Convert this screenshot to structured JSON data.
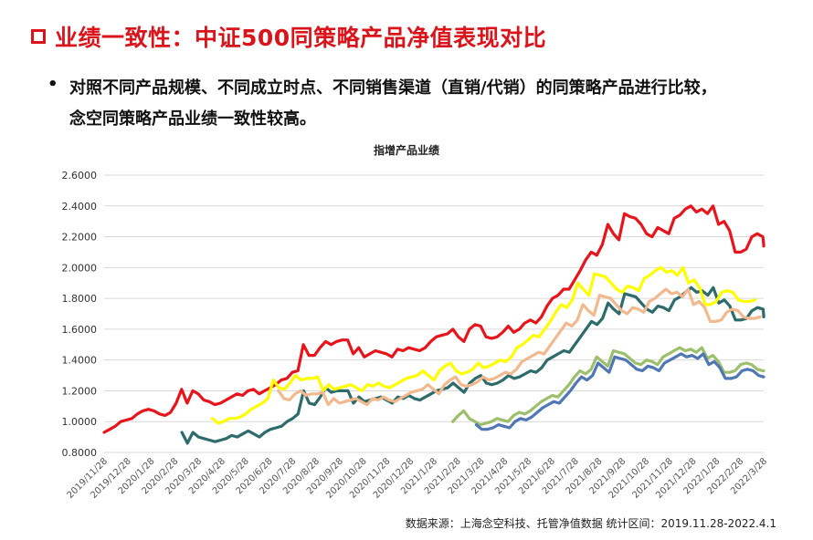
{
  "slide": {
    "title": "业绩一致性：中证500同策略产品净值表现对比",
    "bullet_symbol": "•",
    "bullet_line1": "对照不同产品规模、不同成立时点、不同销售渠道（直销/代销）的同策略产品进行比较，",
    "bullet_line2": "念空同策略产品业绩一致性较高。",
    "source": "数据来源：上海念空科技、托管净值数据     统计区间：2019.11.28-2022.4.1"
  },
  "colors": {
    "title": "#d9141b",
    "red": "#e8141b",
    "yellow": "#ffff00",
    "teal": "#2e6b6b",
    "peach": "#f2b98e",
    "green": "#9cbf6b",
    "blue": "#4f77b5"
  },
  "chart_data": {
    "type": "line",
    "title": "指增产品业绩",
    "xlabel": "",
    "ylabel": "",
    "ylim": [
      0.8,
      2.6
    ],
    "yticks": [
      "0.8000",
      "1.0000",
      "1.2000",
      "1.4000",
      "1.6000",
      "1.8000",
      "2.0000",
      "2.2000",
      "2.4000",
      "2.6000"
    ],
    "x_tick_labels": [
      "2019/11/28",
      "2019/12/28",
      "2020/1/28",
      "2020/2/28",
      "2020/3/28",
      "2020/4/28",
      "2020/5/28",
      "2020/6/28",
      "2020/7/28",
      "2020/8/28",
      "2020/9/28",
      "2020/10/28",
      "2020/11/28",
      "2020/12/28",
      "2021/1/28",
      "2021/2/28",
      "2021/3/28",
      "2021/4/28",
      "2021/5/28",
      "2021/6/28",
      "2021/7/28",
      "2021/8/28",
      "2021/9/28",
      "2021/10/28",
      "2021/11/28",
      "2021/12/28",
      "2022/1/28",
      "2022/2/28",
      "2022/3/28"
    ],
    "grid": true,
    "legend": "none",
    "series": [
      {
        "color": "#e8141b",
        "start_month": 0,
        "values": [
          0.93,
          0.95,
          0.97,
          1.0,
          1.01,
          1.02,
          1.05,
          1.07,
          1.08,
          1.07,
          1.05,
          1.04,
          1.06,
          1.12,
          1.21,
          1.12,
          1.2,
          1.18,
          1.14,
          1.13,
          1.11,
          1.12,
          1.14,
          1.16,
          1.18,
          1.17,
          1.2,
          1.21,
          1.18,
          1.2,
          1.22,
          1.24,
          1.27,
          1.28,
          1.32,
          1.33,
          1.5,
          1.43,
          1.43,
          1.48,
          1.52,
          1.5,
          1.52,
          1.53,
          1.53,
          1.44,
          1.48,
          1.42,
          1.44,
          1.46,
          1.45,
          1.44,
          1.42,
          1.47,
          1.46,
          1.48,
          1.47,
          1.46,
          1.48,
          1.52,
          1.55,
          1.56,
          1.57,
          1.6,
          1.55,
          1.52,
          1.6,
          1.63,
          1.62,
          1.55,
          1.54,
          1.55,
          1.58,
          1.62,
          1.58,
          1.6,
          1.64,
          1.66,
          1.64,
          1.68,
          1.75,
          1.8,
          1.82,
          1.86,
          1.86,
          1.92,
          1.98,
          2.05,
          2.1,
          2.08,
          2.15,
          2.28,
          2.22,
          2.18,
          2.35,
          2.33,
          2.32,
          2.28,
          2.22,
          2.2,
          2.26,
          2.24,
          2.22,
          2.32,
          2.34,
          2.38,
          2.4,
          2.36,
          2.38,
          2.35,
          2.4,
          2.28,
          2.3,
          2.24,
          2.1,
          2.1,
          2.12,
          2.2,
          2.22,
          2.2,
          2.15,
          2.14,
          2.14,
          2.15
        ]
      },
      {
        "color": "#2e6b6b",
        "start_month": 3.3,
        "values": [
          0.93,
          0.86,
          0.93,
          0.9,
          0.89,
          0.88,
          0.87,
          0.88,
          0.89,
          0.91,
          0.9,
          0.92,
          0.94,
          0.92,
          0.9,
          0.93,
          0.95,
          0.96,
          0.97,
          1.0,
          1.02,
          1.05,
          1.2,
          1.12,
          1.11,
          1.16,
          1.22,
          1.19,
          1.2,
          1.2,
          1.2,
          1.12,
          1.16,
          1.13,
          1.14,
          1.15,
          1.16,
          1.14,
          1.12,
          1.16,
          1.15,
          1.17,
          1.15,
          1.14,
          1.16,
          1.18,
          1.2,
          1.21,
          1.22,
          1.25,
          1.22,
          1.19,
          1.25,
          1.28,
          1.3,
          1.25,
          1.24,
          1.25,
          1.27,
          1.3,
          1.28,
          1.29,
          1.31,
          1.33,
          1.32,
          1.35,
          1.4,
          1.42,
          1.44,
          1.46,
          1.45,
          1.5,
          1.55,
          1.6,
          1.65,
          1.63,
          1.67,
          1.77,
          1.73,
          1.7,
          1.83,
          1.82,
          1.81,
          1.77,
          1.73,
          1.71,
          1.75,
          1.74,
          1.72,
          1.79,
          1.81,
          1.84,
          1.87,
          1.84,
          1.85,
          1.82,
          1.87,
          1.77,
          1.79,
          1.75,
          1.66,
          1.66,
          1.67,
          1.72,
          1.74,
          1.73,
          1.69,
          1.68,
          1.68,
          1.69
        ]
      },
      {
        "color": "#ffff00",
        "start_month": 4.6,
        "values": [
          1.02,
          0.99,
          1.0,
          1.02,
          1.02,
          1.03,
          1.05,
          1.08,
          1.1,
          1.12,
          1.15,
          1.27,
          1.22,
          1.21,
          1.25,
          1.3,
          1.27,
          1.28,
          1.28,
          1.29,
          1.2,
          1.24,
          1.21,
          1.22,
          1.23,
          1.24,
          1.22,
          1.2,
          1.24,
          1.23,
          1.25,
          1.23,
          1.22,
          1.24,
          1.26,
          1.28,
          1.29,
          1.3,
          1.33,
          1.3,
          1.27,
          1.33,
          1.36,
          1.38,
          1.33,
          1.31,
          1.32,
          1.34,
          1.38,
          1.35,
          1.36,
          1.38,
          1.4,
          1.39,
          1.42,
          1.48,
          1.5,
          1.53,
          1.56,
          1.55,
          1.6,
          1.65,
          1.71,
          1.76,
          1.74,
          1.79,
          1.9,
          1.86,
          1.82,
          1.96,
          1.95,
          1.94,
          1.9,
          1.86,
          1.84,
          1.88,
          1.87,
          1.85,
          1.93,
          1.95,
          1.98,
          2.0,
          1.97,
          1.98,
          1.95,
          2.0,
          1.9,
          1.92,
          1.87,
          1.76,
          1.76,
          1.78,
          1.84,
          1.85,
          1.84,
          1.79,
          1.78,
          1.78,
          1.79
        ]
      },
      {
        "color": "#f2b98e",
        "start_month": 7.4,
        "values": [
          1.2,
          1.15,
          1.14,
          1.18,
          1.2,
          1.17,
          1.18,
          1.18,
          1.19,
          1.11,
          1.15,
          1.12,
          1.13,
          1.14,
          1.15,
          1.13,
          1.11,
          1.15,
          1.14,
          1.16,
          1.14,
          1.13,
          1.15,
          1.17,
          1.19,
          1.2,
          1.21,
          1.24,
          1.21,
          1.18,
          1.24,
          1.27,
          1.29,
          1.24,
          1.23,
          1.24,
          1.26,
          1.29,
          1.27,
          1.28,
          1.3,
          1.32,
          1.31,
          1.34,
          1.39,
          1.41,
          1.43,
          1.45,
          1.44,
          1.49,
          1.54,
          1.59,
          1.64,
          1.62,
          1.66,
          1.76,
          1.72,
          1.69,
          1.82,
          1.81,
          1.8,
          1.76,
          1.72,
          1.7,
          1.74,
          1.73,
          1.71,
          1.78,
          1.8,
          1.83,
          1.86,
          1.83,
          1.84,
          1.81,
          1.86,
          1.76,
          1.78,
          1.74,
          1.65,
          1.65,
          1.66,
          1.71,
          1.73,
          1.72,
          1.68,
          1.67,
          1.67,
          1.68
        ]
      },
      {
        "color": "#9cbf6b",
        "start_month": 14.8,
        "values": [
          1.0,
          1.04,
          1.07,
          1.02,
          1.0,
          0.98,
          0.99,
          1.0,
          1.02,
          1.01,
          1.0,
          1.04,
          1.06,
          1.05,
          1.07,
          1.1,
          1.13,
          1.15,
          1.17,
          1.16,
          1.2,
          1.24,
          1.29,
          1.33,
          1.31,
          1.34,
          1.42,
          1.39,
          1.36,
          1.46,
          1.45,
          1.44,
          1.41,
          1.38,
          1.37,
          1.4,
          1.39,
          1.37,
          1.42,
          1.44,
          1.46,
          1.48,
          1.46,
          1.47,
          1.45,
          1.48,
          1.41,
          1.43,
          1.39,
          1.32,
          1.32,
          1.33,
          1.37,
          1.38,
          1.37,
          1.34,
          1.33,
          1.33,
          1.33
        ]
      },
      {
        "color": "#4f77b5",
        "start_month": 15.8,
        "values": [
          0.98,
          0.95,
          0.95,
          0.96,
          0.98,
          0.97,
          0.96,
          1.0,
          1.02,
          1.01,
          1.03,
          1.06,
          1.09,
          1.11,
          1.13,
          1.12,
          1.16,
          1.2,
          1.25,
          1.29,
          1.27,
          1.3,
          1.38,
          1.35,
          1.32,
          1.42,
          1.41,
          1.4,
          1.37,
          1.34,
          1.33,
          1.36,
          1.35,
          1.33,
          1.38,
          1.4,
          1.42,
          1.44,
          1.42,
          1.43,
          1.41,
          1.44,
          1.37,
          1.39,
          1.35,
          1.28,
          1.28,
          1.29,
          1.33,
          1.34,
          1.33,
          1.3,
          1.29,
          1.29,
          1.29
        ]
      }
    ]
  }
}
